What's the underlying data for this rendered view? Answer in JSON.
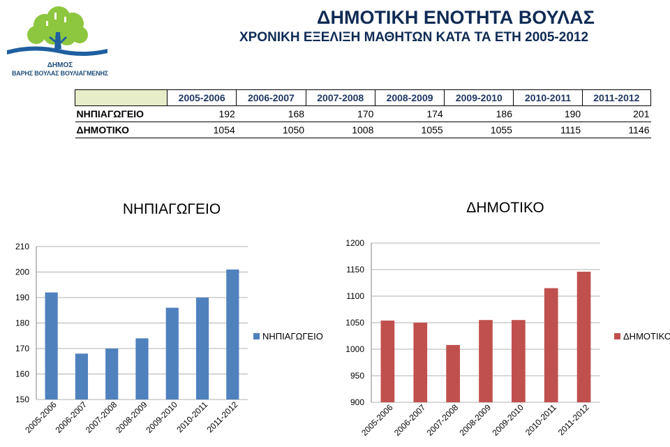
{
  "logo": {
    "line1": "ΔΗΜΟΣ",
    "line2": "ΒΑΡΗΣ ΒΟΥΛΑΣ ΒΟΥΛΙΑΓΜΕΝΗΣ"
  },
  "header": {
    "title": "ΔΗΜΟΤΙΚΗ ΕΝΟΤΗΤΑ ΒΟΥΛΑΣ",
    "subtitle": "ΧΡΟΝΙΚΗ ΕΞΕΛΙΞΗ ΜΑΘΗΤΩΝ ΚΑΤΑ ΤΑ ΕΤΗ 2005-2012"
  },
  "table": {
    "columns": [
      "2005-2006",
      "2006-2007",
      "2007-2008",
      "2008-2009",
      "2009-2010",
      "2010-2011",
      "2011-2012"
    ],
    "rows": [
      {
        "label": "ΝΗΠΙΑΓΩΓΕΙΟ",
        "values": [
          "192",
          "168",
          "170",
          "174",
          "186",
          "190",
          "201"
        ]
      },
      {
        "label": "ΔΗΜΟΤΙΚΟ",
        "values": [
          "1054",
          "1050",
          "1008",
          "1055",
          "1055",
          "1115",
          "1146"
        ]
      }
    ]
  },
  "chart_data": [
    {
      "type": "bar",
      "title": "ΝΗΠΙΑΓΩΓΕΙΟ",
      "categories": [
        "2005-2006",
        "2006-2007",
        "2007-2008",
        "2008-2009",
        "2009-2010",
        "2010-2011",
        "2011-2012"
      ],
      "series": [
        {
          "name": "ΝΗΠΙΑΓΩΓΕΙΟ",
          "values": [
            192,
            168,
            170,
            174,
            186,
            190,
            201
          ],
          "color": "#4f81bd"
        }
      ],
      "ylim": [
        150,
        210
      ],
      "yticks": [
        150,
        160,
        170,
        180,
        190,
        200,
        210
      ],
      "grid": true,
      "legend": "right"
    },
    {
      "type": "bar",
      "title": "ΔΗΜΟΤΙΚΟ",
      "categories": [
        "2005-2006",
        "2006-2007",
        "2007-2008",
        "2008-2009",
        "2009-2010",
        "2010-2011",
        "2011-2012"
      ],
      "series": [
        {
          "name": "ΔΗΜΟΤΙΚΟ",
          "values": [
            1054,
            1050,
            1008,
            1055,
            1055,
            1115,
            1146
          ],
          "color": "#c0504d"
        }
      ],
      "ylim": [
        900,
        1200
      ],
      "yticks": [
        900,
        950,
        1000,
        1050,
        1100,
        1150,
        1200
      ],
      "grid": true,
      "legend": "right"
    }
  ]
}
